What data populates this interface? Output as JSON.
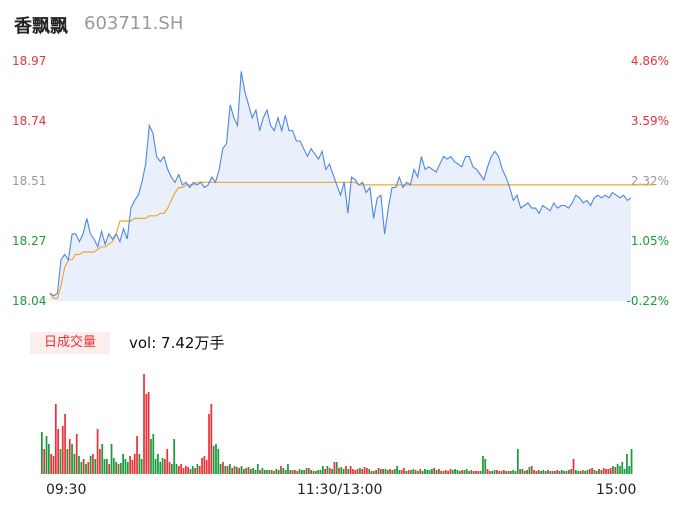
{
  "header": {
    "name": "香飘飘",
    "code": "603711.SH"
  },
  "colors": {
    "up": "#e8333a",
    "down": "#1a9b3c",
    "neutral": "#999999",
    "price_line": "#4f86e0",
    "avg_line": "#f0a531"
  },
  "volume": {
    "badge_label": "日成交量",
    "text": "vol: 7.42万手"
  },
  "chart_data": [
    {
      "type": "line",
      "ylim": [
        18.04,
        18.97
      ],
      "grid": false,
      "y_ticks_left": [
        "18.97",
        "18.74",
        "18.51",
        "18.27",
        "18.04"
      ],
      "y_ticks_right": [
        "4.86%",
        "3.59%",
        "2.32%",
        "1.05%",
        "-0.22%"
      ],
      "x_ticks": [
        "09:30",
        "11:30/13:00",
        "15:00"
      ],
      "series": [
        {
          "values": [
            18.07,
            18.06,
            18.07,
            18.2,
            18.22,
            18.2,
            18.3,
            18.3,
            18.27,
            18.3,
            18.36,
            18.3,
            18.28,
            18.25,
            18.31,
            18.26,
            18.3,
            18.28,
            18.3,
            18.27,
            18.32,
            18.28,
            18.4,
            18.43,
            18.45,
            18.5,
            18.57,
            18.72,
            18.69,
            18.6,
            18.58,
            18.6,
            18.55,
            18.52,
            18.5,
            18.53,
            18.49,
            18.5,
            18.48,
            18.5,
            18.49,
            18.5,
            18.48,
            18.49,
            18.52,
            18.5,
            18.55,
            18.63,
            18.65,
            18.8,
            18.75,
            18.72,
            18.93,
            18.85,
            18.8,
            18.75,
            18.78,
            18.7,
            18.75,
            18.78,
            18.72,
            18.7,
            18.75,
            18.7,
            18.76,
            18.7,
            18.7,
            18.66,
            18.66,
            18.63,
            18.6,
            18.63,
            18.61,
            18.59,
            18.62,
            18.55,
            18.57,
            18.53,
            18.49,
            18.45,
            18.5,
            18.38,
            18.52,
            18.51,
            18.49,
            18.5,
            18.46,
            18.48,
            18.36,
            18.44,
            18.45,
            18.3,
            18.4,
            18.48,
            18.48,
            18.52,
            18.48,
            18.5,
            18.49,
            18.55,
            18.52,
            18.6,
            18.55,
            18.56,
            18.55,
            18.54,
            18.57,
            18.6,
            18.59,
            18.6,
            18.58,
            18.57,
            18.56,
            18.6,
            18.6,
            18.56,
            18.55,
            18.53,
            18.51,
            18.56,
            18.6,
            18.62,
            18.6,
            18.55,
            18.52,
            18.48,
            18.43,
            18.45,
            18.4,
            18.41,
            18.42,
            18.4,
            18.4,
            18.38,
            18.41,
            18.4,
            18.39,
            18.42,
            18.4,
            18.41,
            18.41,
            18.4,
            18.42,
            18.45,
            18.44,
            18.42,
            18.43,
            18.41,
            18.44,
            18.45,
            18.44,
            18.45,
            18.44,
            18.46,
            18.45,
            18.44,
            18.45,
            18.43,
            18.44
          ]
        },
        {
          "values": [
            18.07,
            18.05,
            18.05,
            18.1,
            18.17,
            18.2,
            18.2,
            18.22,
            18.22,
            18.23,
            18.23,
            18.23,
            18.23,
            18.24,
            18.25,
            18.25,
            18.26,
            18.27,
            18.3,
            18.35,
            18.35,
            18.35,
            18.35,
            18.36,
            18.36,
            18.36,
            18.36,
            18.37,
            18.37,
            18.37,
            18.38,
            18.38,
            18.4,
            18.43,
            18.46,
            18.48,
            18.48,
            18.49,
            18.49,
            18.49,
            18.5,
            18.5,
            18.5,
            18.5,
            18.5,
            18.5,
            18.5,
            18.5,
            18.5,
            18.5,
            18.5,
            18.5,
            18.5,
            18.5,
            18.5,
            18.5,
            18.5,
            18.5,
            18.5,
            18.5,
            18.5,
            18.5,
            18.5,
            18.5,
            18.5,
            18.5,
            18.5,
            18.5,
            18.5,
            18.5,
            18.5,
            18.5,
            18.5,
            18.5,
            18.5,
            18.5,
            18.5,
            18.5,
            18.5,
            18.5,
            18.5,
            18.5,
            18.5,
            18.5,
            18.49,
            18.49,
            18.49,
            18.49,
            18.49,
            18.49,
            18.49,
            18.49,
            18.49,
            18.49,
            18.49,
            18.49,
            18.49,
            18.49,
            18.49,
            18.49,
            18.49,
            18.49,
            18.49,
            18.49,
            18.49,
            18.49,
            18.49,
            18.49,
            18.49,
            18.49,
            18.49,
            18.49,
            18.49,
            18.49,
            18.49,
            18.49,
            18.49,
            18.49,
            18.49,
            18.49,
            18.49,
            18.49,
            18.49,
            18.49,
            18.49,
            18.49,
            18.49,
            18.49,
            18.49,
            18.49,
            18.49,
            18.49,
            18.49,
            18.49,
            18.49,
            18.49,
            18.49,
            18.49,
            18.49,
            18.49,
            18.49,
            18.49,
            18.49,
            18.49,
            18.49,
            18.49,
            18.49,
            18.49,
            18.49,
            18.49,
            18.49,
            18.49,
            18.49,
            18.49,
            18.49,
            18.49,
            18.49,
            18.49,
            18.49,
            18.49,
            18.49,
            18.49,
            18.49,
            18.49,
            18.49
          ]
        }
      ]
    },
    {
      "type": "bar",
      "x_ticks": [
        "09:30",
        "11:30/13:00",
        "15:00"
      ],
      "values": [
        42,
        25,
        38,
        30,
        20,
        18,
        70,
        45,
        25,
        48,
        60,
        25,
        35,
        30,
        20,
        40,
        18,
        12,
        15,
        10,
        12,
        18,
        20,
        15,
        45,
        25,
        30,
        15,
        15,
        10,
        30,
        16,
        12,
        10,
        11,
        20,
        15,
        12,
        18,
        14,
        20,
        38,
        20,
        15,
        100,
        80,
        82,
        35,
        40,
        15,
        20,
        12,
        16,
        15,
        25,
        12,
        10,
        35,
        10,
        8,
        10,
        6,
        8,
        7,
        5,
        8,
        6,
        10,
        8,
        16,
        18,
        14,
        60,
        70,
        28,
        30,
        25,
        10,
        12,
        8,
        8,
        10,
        6,
        8,
        7,
        6,
        8,
        5,
        6,
        7,
        5,
        6,
        4,
        10,
        4,
        6,
        4,
        4,
        4,
        4,
        3,
        5,
        4,
        8,
        6,
        4,
        10,
        4,
        4,
        4,
        3,
        5,
        4,
        4,
        6,
        6,
        4,
        3,
        3,
        4,
        4,
        8,
        5,
        8,
        6,
        5,
        12,
        12,
        6,
        7,
        5,
        8,
        5,
        8,
        5,
        4,
        5,
        6,
        5,
        7,
        6,
        5,
        3,
        3,
        4,
        6,
        5,
        5,
        5,
        4,
        5,
        4,
        5,
        8,
        4,
        4,
        6,
        3,
        4,
        4,
        5,
        4,
        3,
        5,
        3,
        5,
        4,
        4,
        5,
        6,
        4,
        5,
        3,
        3,
        4,
        3,
        5,
        4,
        5,
        4,
        3,
        4,
        4,
        5,
        3,
        4,
        3,
        3,
        3,
        3,
        18,
        15,
        5,
        3,
        3,
        4,
        4,
        3,
        3,
        4,
        3,
        3,
        3,
        4,
        3,
        25,
        5,
        5,
        3,
        4,
        7,
        8,
        4,
        3,
        4,
        3,
        4,
        3,
        4,
        3,
        3,
        3,
        4,
        3,
        4,
        3,
        3,
        4,
        5,
        15,
        4,
        3,
        3,
        4,
        3,
        4,
        5,
        6,
        4,
        3,
        5,
        4,
        6,
        5,
        5,
        6,
        8,
        7,
        10,
        8,
        12,
        5,
        20,
        8,
        25
      ],
      "up": [
        0,
        1,
        0,
        0,
        1,
        1,
        1,
        1,
        0,
        1,
        1,
        0,
        1,
        0,
        0,
        1,
        0,
        0,
        1,
        0,
        1,
        0,
        1,
        0,
        1,
        1,
        0,
        0,
        0,
        1,
        0,
        0,
        0,
        1,
        0,
        0,
        0,
        0,
        1,
        1,
        1,
        1,
        0,
        0,
        1,
        1,
        1,
        0,
        0,
        0,
        0,
        0,
        0,
        1,
        1,
        1,
        0,
        0,
        0,
        1,
        1,
        1,
        1,
        1,
        0,
        0,
        1,
        0,
        1,
        1,
        1,
        1,
        1,
        1,
        0,
        0,
        0,
        0,
        1,
        0,
        1,
        0,
        0,
        1,
        0,
        1,
        0,
        0,
        1,
        0,
        1,
        0,
        0,
        0,
        1,
        0,
        0,
        0,
        1,
        0,
        1,
        0,
        0,
        1,
        0,
        0,
        0,
        1,
        0,
        1,
        1,
        0,
        0,
        0,
        1,
        0,
        1,
        0,
        1,
        0,
        0,
        0,
        1,
        0,
        1,
        0,
        1,
        0,
        1,
        0,
        0,
        1,
        0,
        1,
        1,
        1,
        1,
        0,
        1,
        1,
        1,
        0,
        1,
        1,
        0,
        1,
        0,
        1,
        0,
        0,
        1,
        1,
        0,
        0,
        0,
        1,
        1,
        0,
        1,
        0,
        0,
        1,
        0,
        1,
        0,
        0,
        0,
        0,
        0,
        1,
        0,
        1,
        1,
        0,
        1,
        1,
        1,
        0,
        0,
        0,
        0,
        1,
        0,
        0,
        1,
        0,
        1,
        1,
        1,
        0,
        0,
        0,
        1,
        1,
        0,
        0,
        1,
        1,
        0,
        1,
        0,
        1,
        0,
        0,
        0,
        0,
        1,
        0,
        0,
        1,
        0,
        1,
        0,
        1,
        1,
        0,
        0,
        0,
        1,
        0,
        1,
        0,
        1,
        1,
        0,
        0,
        1,
        0,
        1,
        1,
        0,
        0,
        0,
        1,
        0,
        0,
        1,
        1,
        0,
        0,
        1,
        0,
        1,
        1,
        1,
        1,
        0,
        1
      ]
    }
  ]
}
